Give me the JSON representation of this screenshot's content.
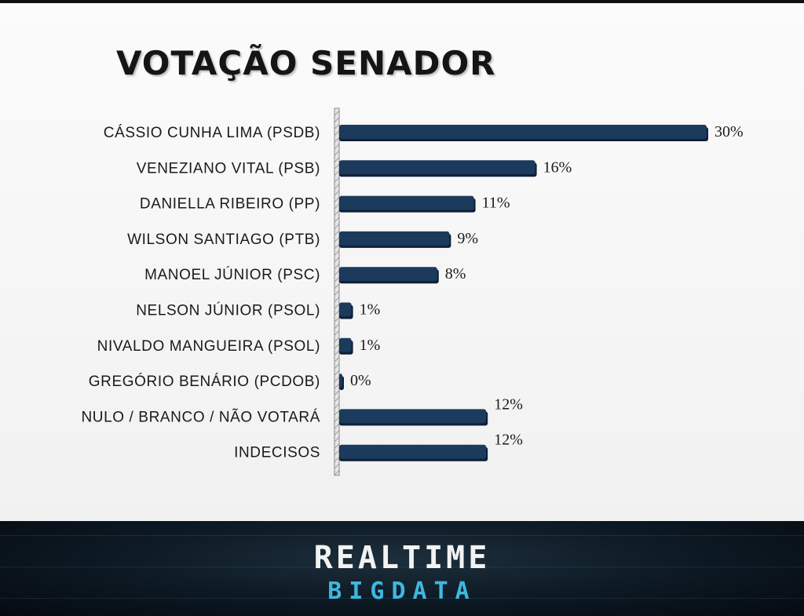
{
  "slide": {
    "title": "VOTAÇÃO SENADOR"
  },
  "chart_data": {
    "type": "bar",
    "orientation": "horizontal",
    "title": "VOTAÇÃO SENADOR",
    "categories": [
      "CÁSSIO CUNHA LIMA (PSDB)",
      "VENEZIANO VITAL (PSB)",
      "DANIELLA RIBEIRO (PP)",
      "WILSON SANTIAGO (PTB)",
      "MANOEL JÚNIOR (PSC)",
      "NELSON JÚNIOR (PSOL)",
      "NIVALDO MANGUEIRA (PSOL)",
      "GREGÓRIO BENÁRIO (PCDOB)",
      "NULO / BRANCO / NÃO VOTARÁ",
      "INDECISOS"
    ],
    "values": [
      30,
      16,
      11,
      9,
      8,
      1,
      1,
      0,
      12,
      12
    ],
    "value_labels": [
      "30%",
      "16%",
      "11%",
      "9%",
      "8%",
      "1%",
      "1%",
      "0%",
      "12%",
      "12%"
    ],
    "xlim": [
      0,
      30
    ],
    "bar_color": "#1b3a5c",
    "grid": false,
    "legend": "none"
  },
  "footer": {
    "brand_top": "REALTIME",
    "brand_bottom": "BIGDATA",
    "brand_top_color": "#f2f2f2",
    "brand_bottom_color": "#3fb7e0"
  }
}
